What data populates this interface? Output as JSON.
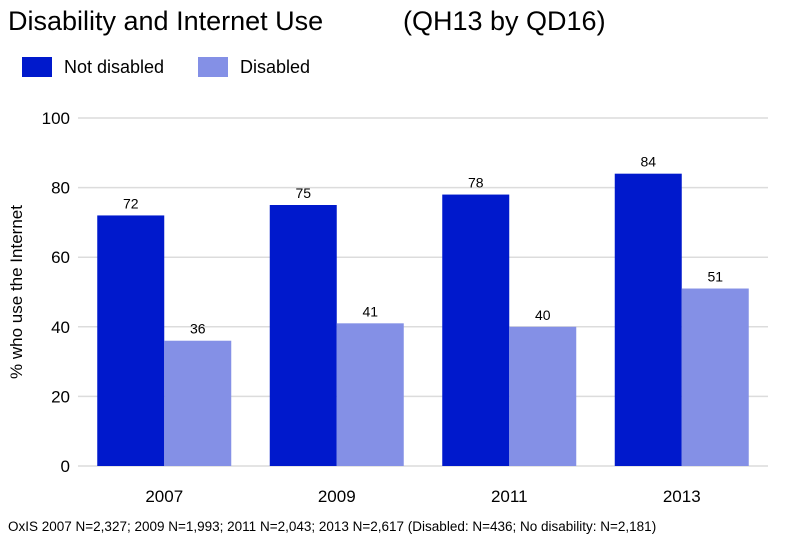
{
  "chart_data": {
    "type": "bar",
    "title": "Disability and Internet Use",
    "subtitle": "(QH13 by QD16)",
    "xlabel": "",
    "ylabel": "% who use the Internet",
    "categories": [
      "2007",
      "2009",
      "2011",
      "2013"
    ],
    "series": [
      {
        "name": "Not disabled",
        "color": "#0019cc",
        "values": [
          72,
          75,
          78,
          84
        ]
      },
      {
        "name": "Disabled",
        "color": "#8490e6",
        "values": [
          36,
          41,
          40,
          51
        ]
      }
    ],
    "ylim": [
      0,
      100
    ],
    "yticks": [
      0,
      20,
      40,
      60,
      80,
      100
    ],
    "grid": true,
    "legend_position": "top-left",
    "footnote": "OxIS 2007 N=2,327; 2009 N=1,993; 2011 N=2,043; 2013 N=2,617 (Disabled: N=436; No disability: N=2,181)"
  }
}
